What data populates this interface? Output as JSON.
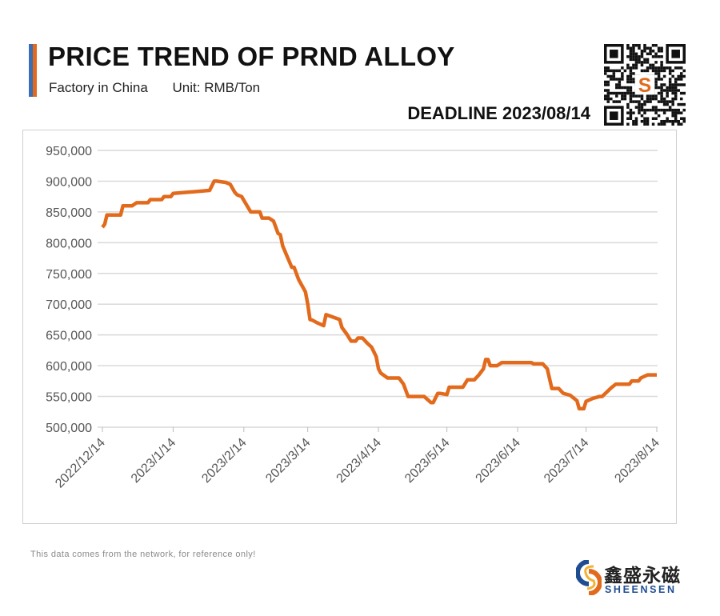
{
  "header": {
    "title": "PRICE TREND OF PRND ALLOY",
    "factory": "Factory in China",
    "unit": "Unit: RMB/Ton",
    "deadline": "DEADLINE 2023/08/14"
  },
  "footer": {
    "note": "This data comes from the network, for reference only!",
    "logo_cn": "鑫盛永磁",
    "logo_en": "SHEENSEN"
  },
  "colors": {
    "line": "#e26a1c",
    "grid": "#d9d9d9",
    "brand_blue": "#1f4d91",
    "brand_orange": "#e26a1c"
  },
  "chart_data": {
    "type": "line",
    "title": "PRICE TREND OF PRND ALLOY",
    "xlabel": "",
    "ylabel": "RMB/Ton",
    "x_unit": "days since 2022/12/14",
    "ylim": [
      500000,
      950000
    ],
    "xlim": [
      0,
      243
    ],
    "grid": true,
    "yticks": [
      {
        "value": 500000,
        "label": "500,000"
      },
      {
        "value": 550000,
        "label": "550,000"
      },
      {
        "value": 600000,
        "label": "600,000"
      },
      {
        "value": 650000,
        "label": "650,000"
      },
      {
        "value": 700000,
        "label": "700,000"
      },
      {
        "value": 750000,
        "label": "750,000"
      },
      {
        "value": 800000,
        "label": "800,000"
      },
      {
        "value": 850000,
        "label": "850,000"
      },
      {
        "value": 900000,
        "label": "900,000"
      },
      {
        "value": 950000,
        "label": "950,000"
      }
    ],
    "xticks": [
      {
        "value": 0,
        "label": "2022/12/14"
      },
      {
        "value": 31,
        "label": "2023/1/14"
      },
      {
        "value": 62,
        "label": "2023/2/14"
      },
      {
        "value": 90,
        "label": "2023/3/14"
      },
      {
        "value": 121,
        "label": "2023/4/14"
      },
      {
        "value": 151,
        "label": "2023/5/14"
      },
      {
        "value": 182,
        "label": "2023/6/14"
      },
      {
        "value": 212,
        "label": "2023/7/14"
      },
      {
        "value": 243,
        "label": "2023/8/14"
      }
    ],
    "series": [
      {
        "name": "PrNd Alloy",
        "x": [
          0,
          1,
          2,
          8,
          9,
          13,
          15,
          20,
          21,
          26,
          27,
          30,
          31,
          47,
          49,
          50,
          54,
          56,
          58,
          59,
          61,
          65,
          69,
          70,
          73,
          75,
          77,
          78,
          79,
          83,
          84,
          86,
          89,
          90,
          91,
          92,
          94,
          97,
          98,
          104,
          105,
          107,
          109,
          111,
          112,
          114,
          116,
          118,
          120,
          121,
          122,
          125,
          130,
          132,
          134,
          141,
          144,
          145,
          147,
          148,
          151,
          152,
          155,
          158,
          160,
          163,
          165,
          167,
          168,
          169,
          170,
          173,
          175,
          188,
          189,
          193,
          195,
          197,
          200,
          202,
          205,
          208,
          209,
          211,
          212,
          215,
          218,
          219,
          221,
          223,
          225,
          231,
          232,
          235,
          236,
          239,
          243
        ],
        "values": [
          825000,
          830000,
          845000,
          845000,
          860000,
          860000,
          865000,
          865000,
          870000,
          870000,
          875000,
          875000,
          880000,
          885000,
          900000,
          900000,
          898000,
          895000,
          882000,
          878000,
          875000,
          850000,
          850000,
          840000,
          840000,
          835000,
          815000,
          813000,
          795000,
          760000,
          760000,
          740000,
          720000,
          700000,
          675000,
          674000,
          670000,
          665000,
          683000,
          675000,
          662000,
          652000,
          640000,
          640000,
          645000,
          645000,
          637000,
          630000,
          615000,
          595000,
          588000,
          580000,
          580000,
          570000,
          550000,
          550000,
          540000,
          540000,
          555000,
          555000,
          553000,
          565000,
          565000,
          565000,
          577000,
          577000,
          585000,
          595000,
          610000,
          610000,
          600000,
          600000,
          605000,
          605000,
          603000,
          603000,
          595000,
          563000,
          563000,
          555000,
          552000,
          543000,
          530000,
          530000,
          542000,
          547000,
          550000,
          550000,
          557000,
          564000,
          570000,
          570000,
          575000,
          575000,
          580000,
          585000,
          585000
        ]
      }
    ]
  }
}
